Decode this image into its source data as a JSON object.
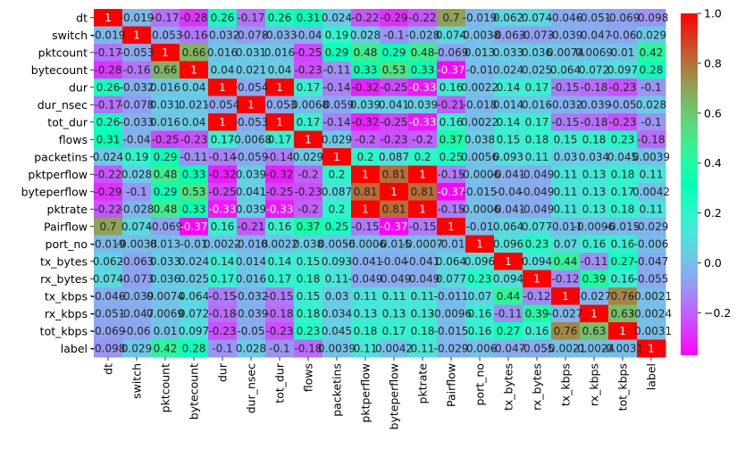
{
  "chart_data": {
    "type": "heatmap",
    "title": "",
    "xlabel": "",
    "ylabel": "",
    "labels": [
      "dt",
      "switch",
      "pktcount",
      "bytecount",
      "dur",
      "dur_nsec",
      "tot_dur",
      "flows",
      "packetins",
      "pktperflow",
      "byteperflow",
      "pktrate",
      "Pairflow",
      "port_no",
      "tx_bytes",
      "rx_bytes",
      "tx_kbps",
      "rx_kbps",
      "tot_kbps",
      "label"
    ],
    "values": [
      [
        1,
        -0.019,
        -0.17,
        -0.28,
        0.26,
        -0.17,
        0.26,
        0.31,
        0.024,
        -0.22,
        -0.29,
        -0.22,
        0.7,
        -0.019,
        0.062,
        0.074,
        -0.046,
        -0.051,
        -0.069,
        -0.098
      ],
      [
        -0.019,
        1,
        -0.053,
        -0.16,
        -0.032,
        -0.078,
        -0.033,
        -0.04,
        0.19,
        0.028,
        -0.1,
        -0.028,
        0.074,
        -0.0038,
        -0.063,
        -0.073,
        -0.039,
        -0.047,
        -0.06,
        0.029
      ],
      [
        -0.17,
        -0.053,
        1,
        0.66,
        0.016,
        0.031,
        0.016,
        -0.25,
        0.29,
        0.48,
        0.29,
        0.48,
        -0.069,
        0.013,
        0.033,
        0.036,
        0.0074,
        0.0069,
        0.01,
        0.42
      ],
      [
        -0.28,
        -0.16,
        0.66,
        1,
        0.04,
        0.021,
        0.04,
        -0.23,
        -0.11,
        0.33,
        0.53,
        0.33,
        -0.37,
        -0.01,
        0.024,
        0.025,
        0.064,
        0.072,
        0.097,
        0.28
      ],
      [
        0.26,
        -0.032,
        0.016,
        0.04,
        1,
        -0.054,
        1,
        0.17,
        -0.14,
        -0.32,
        -0.25,
        -0.33,
        0.16,
        0.0022,
        0.14,
        0.17,
        -0.15,
        -0.18,
        -0.23,
        -0.1
      ],
      [
        -0.17,
        -0.078,
        0.031,
        0.021,
        -0.054,
        1,
        -0.053,
        -0.0068,
        -0.059,
        0.039,
        0.041,
        0.039,
        -0.21,
        -0.018,
        0.014,
        0.016,
        -0.032,
        -0.039,
        -0.05,
        0.028
      ],
      [
        0.26,
        -0.033,
        0.016,
        0.04,
        1,
        -0.053,
        1,
        0.17,
        -0.14,
        -0.32,
        -0.25,
        -0.33,
        0.16,
        0.0022,
        0.14,
        0.17,
        -0.15,
        -0.18,
        -0.23,
        -0.1
      ],
      [
        0.31,
        -0.04,
        -0.25,
        -0.23,
        0.17,
        -0.0068,
        0.17,
        1,
        0.029,
        -0.2,
        -0.23,
        -0.2,
        0.37,
        0.038,
        0.15,
        0.18,
        0.15,
        0.18,
        0.23,
        -0.18
      ],
      [
        0.024,
        0.19,
        0.29,
        -0.11,
        -0.14,
        -0.059,
        -0.14,
        0.029,
        1,
        0.2,
        0.087,
        0.2,
        0.25,
        0.0056,
        0.093,
        0.11,
        0.03,
        0.034,
        0.045,
        0.0039
      ],
      [
        -0.22,
        0.028,
        0.48,
        0.33,
        -0.32,
        0.039,
        -0.32,
        -0.2,
        0.2,
        1,
        0.81,
        1,
        -0.15,
        -0.0006,
        -0.041,
        -0.049,
        0.11,
        0.13,
        0.18,
        0.11
      ],
      [
        -0.29,
        -0.1,
        0.29,
        0.53,
        -0.25,
        0.041,
        -0.25,
        -0.23,
        0.087,
        0.81,
        1,
        0.81,
        -0.37,
        -0.015,
        -0.04,
        -0.049,
        0.11,
        0.13,
        0.17,
        0.0042
      ],
      [
        -0.22,
        -0.028,
        0.48,
        0.33,
        -0.33,
        0.039,
        -0.33,
        -0.2,
        0.2,
        1,
        0.81,
        1,
        -0.15,
        -0.0006,
        -0.041,
        -0.049,
        0.11,
        0.13,
        0.18,
        0.11
      ],
      [
        0.7,
        0.074,
        -0.069,
        -0.37,
        0.16,
        -0.21,
        0.16,
        0.37,
        0.25,
        -0.15,
        -0.37,
        -0.15,
        1,
        -0.01,
        0.064,
        0.077,
        -0.011,
        -0.0096,
        -0.015,
        -0.029
      ],
      [
        -0.019,
        -0.0038,
        0.013,
        -0.01,
        0.0022,
        -0.018,
        0.0022,
        0.038,
        0.0056,
        -0.0006,
        -0.015,
        -0.0007,
        -0.01,
        1,
        0.096,
        0.23,
        0.07,
        0.16,
        0.16,
        -0.006
      ],
      [
        0.062,
        -0.063,
        0.033,
        0.024,
        0.14,
        0.014,
        0.14,
        0.15,
        0.093,
        -0.041,
        -0.04,
        -0.041,
        0.064,
        0.096,
        1,
        0.094,
        0.44,
        -0.11,
        0.27,
        -0.047
      ],
      [
        0.074,
        -0.073,
        0.036,
        0.025,
        0.17,
        0.016,
        0.17,
        0.18,
        0.11,
        -0.049,
        -0.049,
        -0.049,
        0.077,
        0.23,
        0.094,
        1,
        -0.12,
        0.39,
        0.16,
        -0.055
      ],
      [
        -0.046,
        -0.039,
        0.0074,
        0.064,
        -0.15,
        -0.032,
        -0.15,
        0.15,
        0.03,
        0.11,
        0.11,
        0.11,
        -0.011,
        0.07,
        0.44,
        -0.12,
        1,
        -0.027,
        0.76,
        -0.0021
      ],
      [
        -0.051,
        -0.047,
        0.0069,
        0.072,
        -0.18,
        -0.039,
        -0.18,
        0.18,
        0.034,
        0.13,
        0.13,
        0.13,
        -0.0096,
        0.16,
        -0.11,
        0.39,
        -0.027,
        1,
        0.63,
        -0.0024
      ],
      [
        -0.069,
        -0.06,
        0.01,
        0.097,
        -0.23,
        -0.05,
        -0.23,
        0.23,
        0.045,
        0.18,
        0.17,
        0.18,
        -0.015,
        0.16,
        0.27,
        0.16,
        0.76,
        0.63,
        1,
        -0.0031
      ],
      [
        -0.098,
        0.029,
        0.42,
        0.28,
        -0.1,
        0.028,
        -0.1,
        -0.18,
        0.0039,
        0.11,
        0.0042,
        0.11,
        -0.029,
        -0.006,
        -0.047,
        -0.055,
        -0.0021,
        -0.0024,
        -0.0031,
        1
      ]
    ],
    "cell_labels": [
      [
        "1",
        "-0.019",
        "-0.17",
        "-0.28",
        "0.26",
        "-0.17",
        "0.26",
        "0.31",
        "0.024",
        "-0.22",
        "-0.29",
        "-0.22",
        "0.7",
        "-0.019",
        "0.062",
        "0.074",
        "-0.046",
        "-0.051",
        "-0.069",
        "-0.098"
      ],
      [
        "-0.019",
        "1",
        "-0.053",
        "-0.16",
        "-0.032",
        "-0.078",
        "-0.033",
        "-0.04",
        "0.19",
        "0.028",
        "-0.1",
        "-0.028",
        "0.074",
        "-0.0038",
        "-0.063",
        "-0.073",
        "-0.039",
        "-0.047",
        "-0.06",
        "0.029"
      ],
      [
        "-0.17",
        "-0.053",
        "1",
        "0.66",
        "0.016",
        "0.031",
        "0.016",
        "-0.25",
        "0.29",
        "0.48",
        "0.29",
        "0.48",
        "-0.069",
        "0.013",
        "0.033",
        "0.036",
        "0.0074",
        "0.0069",
        "0.01",
        "0.42"
      ],
      [
        "-0.28",
        "-0.16",
        "0.66",
        "1",
        "0.04",
        "0.021",
        "0.04",
        "-0.23",
        "-0.11",
        "0.33",
        "0.53",
        "0.33",
        "-0.37",
        "-0.01",
        "0.024",
        "0.025",
        "0.064",
        "0.072",
        "0.097",
        "0.28"
      ],
      [
        "0.26",
        "-0.032",
        "0.016",
        "0.04",
        "1",
        "-0.054",
        "1",
        "0.17",
        "-0.14",
        "-0.32",
        "-0.25",
        "-0.33",
        "0.16",
        "0.0022",
        "0.14",
        "0.17",
        "-0.15",
        "-0.18",
        "-0.23",
        "-0.1"
      ],
      [
        "-0.17",
        "-0.078",
        "0.031",
        "0.021",
        "-0.054",
        "1",
        "-0.053",
        "-0.0068",
        "-0.059",
        "0.039",
        "0.041",
        "0.039",
        "-0.21",
        "-0.018",
        "0.014",
        "0.016",
        "-0.032",
        "-0.039",
        "-0.05",
        "0.028"
      ],
      [
        "0.26",
        "-0.033",
        "0.016",
        "0.04",
        "1",
        "-0.053",
        "1",
        "0.17",
        "-0.14",
        "-0.32",
        "-0.25",
        "-0.33",
        "0.16",
        "0.0022",
        "0.14",
        "0.17",
        "-0.15",
        "-0.18",
        "-0.23",
        "-0.1"
      ],
      [
        "0.31",
        "-0.04",
        "-0.25",
        "-0.23",
        "0.17",
        "-0.0068",
        "0.17",
        "1",
        "0.029",
        "-0.2",
        "-0.23",
        "-0.2",
        "0.37",
        "0.038",
        "0.15",
        "0.18",
        "0.15",
        "0.18",
        "0.23",
        "-0.18"
      ],
      [
        "0.024",
        "0.19",
        "0.29",
        "-0.11",
        "-0.14",
        "-0.059",
        "-0.14",
        "0.029",
        "1",
        "0.2",
        "0.087",
        "0.2",
        "0.25",
        "0.0056",
        "0.093",
        "0.11",
        "0.03",
        "0.034",
        "0.045",
        "0.0039"
      ],
      [
        "-0.22",
        "0.028",
        "0.48",
        "0.33",
        "-0.32",
        "0.039",
        "-0.32",
        "-0.2",
        "0.2",
        "1",
        "0.81",
        "1",
        "-0.15",
        "-0.0006",
        "-0.041",
        "-0.049",
        "0.11",
        "0.13",
        "0.18",
        "0.11"
      ],
      [
        "-0.29",
        "-0.1",
        "0.29",
        "0.53",
        "-0.25",
        "0.041",
        "-0.25",
        "-0.23",
        "0.087",
        "0.81",
        "1",
        "0.81",
        "-0.37",
        "-0.015",
        "-0.04",
        "-0.049",
        "0.11",
        "0.13",
        "0.17",
        "0.0042"
      ],
      [
        "-0.22",
        "-0.028",
        "0.48",
        "0.33",
        "-0.33",
        "0.039",
        "-0.33",
        "-0.2",
        "0.2",
        "1",
        "0.81",
        "1",
        "-0.15",
        "-0.0006",
        "-0.041",
        "-0.049",
        "0.11",
        "0.13",
        "0.18",
        "0.11"
      ],
      [
        "0.7",
        "0.074",
        "-0.069",
        "-0.37",
        "0.16",
        "-0.21",
        "0.16",
        "0.37",
        "0.25",
        "-0.15",
        "-0.37",
        "-0.15",
        "1",
        "-0.01",
        "0.064",
        "0.077",
        "-0.011",
        "-0.0096",
        "-0.015",
        "-0.029"
      ],
      [
        "-0.019",
        "-0.0038",
        "0.013",
        "-0.01",
        "0.0022",
        "-0.018",
        "0.0022",
        "0.038",
        "0.0056",
        "-0.0006",
        "-0.015",
        "-0.0007",
        "-0.01",
        "1",
        "0.096",
        "0.23",
        "0.07",
        "0.16",
        "0.16",
        "-0.006"
      ],
      [
        "0.062",
        "-0.063",
        "0.033",
        "0.024",
        "0.14",
        "0.014",
        "0.14",
        "0.15",
        "0.093",
        "-0.041",
        "-0.04",
        "-0.041",
        "0.064",
        "0.096",
        "1",
        "0.094",
        "0.44",
        "-0.11",
        "0.27",
        "-0.047"
      ],
      [
        "0.074",
        "-0.073",
        "0.036",
        "0.025",
        "0.17",
        "0.016",
        "0.17",
        "0.18",
        "0.11",
        "-0.049",
        "-0.049",
        "-0.049",
        "0.077",
        "0.23",
        "0.094",
        "1",
        "-0.12",
        "0.39",
        "0.16",
        "-0.055"
      ],
      [
        "-0.046",
        "-0.039",
        "0.0074",
        "0.064",
        "-0.15",
        "-0.032",
        "-0.15",
        "0.15",
        "0.03",
        "0.11",
        "0.11",
        "0.11",
        "-0.011",
        "0.07",
        "0.44",
        "-0.12",
        "1",
        "-0.027",
        "0.76",
        "-0.0021"
      ],
      [
        "-0.051",
        "-0.047",
        "0.0069",
        "0.072",
        "-0.18",
        "-0.039",
        "-0.18",
        "0.18",
        "0.034",
        "0.13",
        "0.13",
        "0.13",
        "-0.0096",
        "0.16",
        "-0.11",
        "0.39",
        "-0.027",
        "1",
        "0.63",
        "-0.0024"
      ],
      [
        "-0.069",
        "-0.06",
        "0.01",
        "0.097",
        "-0.23",
        "-0.05",
        "-0.23",
        "0.23",
        "0.045",
        "0.18",
        "0.17",
        "0.18",
        "-0.015",
        "0.16",
        "0.27",
        "0.16",
        "0.76",
        "0.63",
        "1",
        "-0.0031"
      ],
      [
        "-0.098",
        "0.029",
        "0.42",
        "0.28",
        "-0.1",
        "0.028",
        "-0.1",
        "-0.18",
        "0.0039",
        "0.11",
        "0.0042",
        "0.11",
        "-0.029",
        "-0.006",
        "-0.047",
        "-0.055",
        "-0.0021",
        "-0.0024",
        "-0.0031",
        "1"
      ]
    ],
    "colormap": "rainbow",
    "vmin": -0.37,
    "vmax": 1,
    "colorbar": {
      "ticks": [
        1.0,
        0.8,
        0.6,
        0.4,
        0.2,
        0.0,
        -0.2
      ],
      "tick_labels": [
        "1.0",
        "0.8",
        "0.6",
        "0.4",
        "0.2",
        "0.0",
        "−0.2"
      ]
    },
    "grid": false,
    "legend": "colorbar-right"
  }
}
